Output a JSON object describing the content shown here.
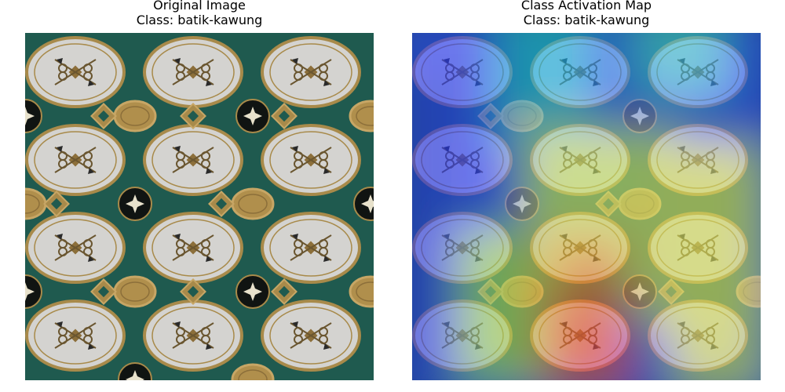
{
  "panels": [
    {
      "title_line1": "Original Image",
      "title_line2": "Class: batik-kawung"
    },
    {
      "title_line1": "Class Activation Map",
      "title_line2": "Class: batik-kawung"
    }
  ],
  "colors": {
    "background": "#1f5a4f",
    "ellipse_fill": "#d4d3d0",
    "ellipse_border": "#a88a4a",
    "gold": "#b08f4c",
    "dark_medallion": "#101412"
  },
  "heatmap": {
    "colormap": "jet",
    "hot_region": "center-bottom",
    "cool_region": "left"
  }
}
